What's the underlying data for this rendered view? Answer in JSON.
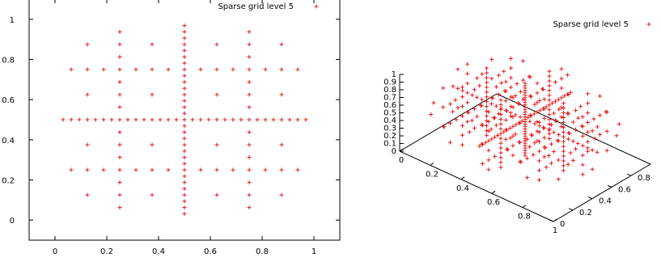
{
  "chart_data": [
    {
      "type": "scatter",
      "title": "",
      "xlabel": "",
      "ylabel": "",
      "xlim": [
        -0.1,
        1.1
      ],
      "ylim": [
        -0.1,
        1.1
      ],
      "x_ticks": [
        0,
        0.2,
        0.4,
        0.6,
        0.8,
        1
      ],
      "x_tick_labels": [
        "0",
        "0.2",
        "0.4",
        "0.6",
        "0.8",
        "1"
      ],
      "y_ticks": [
        0,
        0.2,
        0.4,
        0.6,
        0.8,
        1
      ],
      "y_tick_labels": [
        "0",
        "0.2",
        "0.4",
        "0.6",
        "0.8",
        "1"
      ],
      "legend_position": "top-right",
      "grid": false,
      "marker": "+",
      "series": [
        {
          "name": "Sparse grid level 5",
          "color": "#e41a1c",
          "points": [
            [
              0.5,
              0.03125
            ],
            [
              0.5,
              0.0625
            ],
            [
              0.5,
              0.09375
            ],
            [
              0.5,
              0.125
            ],
            [
              0.5,
              0.15625
            ],
            [
              0.5,
              0.1875
            ],
            [
              0.5,
              0.21875
            ],
            [
              0.5,
              0.25
            ],
            [
              0.5,
              0.28125
            ],
            [
              0.5,
              0.3125
            ],
            [
              0.5,
              0.34375
            ],
            [
              0.5,
              0.375
            ],
            [
              0.5,
              0.40625
            ],
            [
              0.5,
              0.4375
            ],
            [
              0.5,
              0.46875
            ],
            [
              0.5,
              0.5
            ],
            [
              0.5,
              0.53125
            ],
            [
              0.5,
              0.5625
            ],
            [
              0.5,
              0.59375
            ],
            [
              0.5,
              0.625
            ],
            [
              0.5,
              0.65625
            ],
            [
              0.5,
              0.6875
            ],
            [
              0.5,
              0.71875
            ],
            [
              0.5,
              0.75
            ],
            [
              0.5,
              0.78125
            ],
            [
              0.5,
              0.8125
            ],
            [
              0.5,
              0.84375
            ],
            [
              0.5,
              0.875
            ],
            [
              0.5,
              0.90625
            ],
            [
              0.5,
              0.9375
            ],
            [
              0.5,
              0.96875
            ],
            [
              0.03125,
              0.5
            ],
            [
              0.0625,
              0.5
            ],
            [
              0.09375,
              0.5
            ],
            [
              0.125,
              0.5
            ],
            [
              0.15625,
              0.5
            ],
            [
              0.1875,
              0.5
            ],
            [
              0.21875,
              0.5
            ],
            [
              0.25,
              0.5
            ],
            [
              0.28125,
              0.5
            ],
            [
              0.3125,
              0.5
            ],
            [
              0.34375,
              0.5
            ],
            [
              0.375,
              0.5
            ],
            [
              0.40625,
              0.5
            ],
            [
              0.4375,
              0.5
            ],
            [
              0.46875,
              0.5
            ],
            [
              0.53125,
              0.5
            ],
            [
              0.5625,
              0.5
            ],
            [
              0.59375,
              0.5
            ],
            [
              0.625,
              0.5
            ],
            [
              0.65625,
              0.5
            ],
            [
              0.6875,
              0.5
            ],
            [
              0.71875,
              0.5
            ],
            [
              0.75,
              0.5
            ],
            [
              0.78125,
              0.5
            ],
            [
              0.8125,
              0.5
            ],
            [
              0.84375,
              0.5
            ],
            [
              0.875,
              0.5
            ],
            [
              0.90625,
              0.5
            ],
            [
              0.9375,
              0.5
            ],
            [
              0.96875,
              0.5
            ],
            [
              0.25,
              0.0625
            ],
            [
              0.25,
              0.125
            ],
            [
              0.25,
              0.1875
            ],
            [
              0.25,
              0.25
            ],
            [
              0.25,
              0.3125
            ],
            [
              0.25,
              0.375
            ],
            [
              0.25,
              0.4375
            ],
            [
              0.25,
              0.5625
            ],
            [
              0.25,
              0.625
            ],
            [
              0.25,
              0.6875
            ],
            [
              0.25,
              0.75
            ],
            [
              0.25,
              0.8125
            ],
            [
              0.25,
              0.875
            ],
            [
              0.25,
              0.9375
            ],
            [
              0.75,
              0.0625
            ],
            [
              0.75,
              0.125
            ],
            [
              0.75,
              0.1875
            ],
            [
              0.75,
              0.25
            ],
            [
              0.75,
              0.3125
            ],
            [
              0.75,
              0.375
            ],
            [
              0.75,
              0.4375
            ],
            [
              0.75,
              0.5625
            ],
            [
              0.75,
              0.625
            ],
            [
              0.75,
              0.6875
            ],
            [
              0.75,
              0.75
            ],
            [
              0.75,
              0.8125
            ],
            [
              0.75,
              0.875
            ],
            [
              0.75,
              0.9375
            ],
            [
              0.0625,
              0.25
            ],
            [
              0.125,
              0.25
            ],
            [
              0.1875,
              0.25
            ],
            [
              0.3125,
              0.25
            ],
            [
              0.375,
              0.25
            ],
            [
              0.4375,
              0.25
            ],
            [
              0.5625,
              0.25
            ],
            [
              0.625,
              0.25
            ],
            [
              0.6875,
              0.25
            ],
            [
              0.8125,
              0.25
            ],
            [
              0.875,
              0.25
            ],
            [
              0.9375,
              0.25
            ],
            [
              0.0625,
              0.75
            ],
            [
              0.125,
              0.75
            ],
            [
              0.1875,
              0.75
            ],
            [
              0.3125,
              0.75
            ],
            [
              0.375,
              0.75
            ],
            [
              0.4375,
              0.75
            ],
            [
              0.5625,
              0.75
            ],
            [
              0.625,
              0.75
            ],
            [
              0.6875,
              0.75
            ],
            [
              0.8125,
              0.75
            ],
            [
              0.875,
              0.75
            ],
            [
              0.9375,
              0.75
            ],
            [
              0.125,
              0.125
            ],
            [
              0.125,
              0.375
            ],
            [
              0.125,
              0.625
            ],
            [
              0.125,
              0.875
            ],
            [
              0.375,
              0.125
            ],
            [
              0.375,
              0.375
            ],
            [
              0.375,
              0.625
            ],
            [
              0.375,
              0.875
            ],
            [
              0.625,
              0.125
            ],
            [
              0.625,
              0.375
            ],
            [
              0.625,
              0.625
            ],
            [
              0.625,
              0.875
            ],
            [
              0.875,
              0.125
            ],
            [
              0.875,
              0.375
            ],
            [
              0.875,
              0.625
            ],
            [
              0.875,
              0.875
            ]
          ]
        }
      ]
    },
    {
      "type": "scatter",
      "dimensions": 3,
      "title": "",
      "xlabel": "",
      "ylabel": "",
      "zlabel": "",
      "xlim": [
        0,
        1
      ],
      "ylim": [
        0,
        1
      ],
      "zlim": [
        0,
        1
      ],
      "x_tick_labels": [
        "0",
        "0.2",
        "0.4",
        "0.6",
        "0.8",
        "1"
      ],
      "y_tick_labels": [
        "0",
        "0.2",
        "0.4",
        "0.6",
        "0.8"
      ],
      "z_tick_labels": [
        "0",
        "0.1",
        "0.2",
        "0.3",
        "0.4",
        "0.5",
        "0.6",
        "0.7",
        "0.8",
        "0.9",
        "1"
      ],
      "legend_position": "top-right",
      "grid": false,
      "marker": "+",
      "series": [
        {
          "name": "Sparse grid level 5",
          "color": "#e41a1c",
          "description_level": 5
        }
      ]
    }
  ]
}
